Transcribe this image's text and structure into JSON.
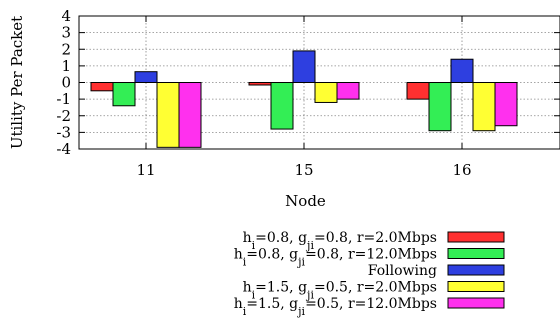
{
  "chart_data": {
    "type": "bar",
    "title": "",
    "xlabel": "Node",
    "ylabel": "Utility Per Packet",
    "ylim": [
      -4,
      4
    ],
    "yticks": [
      4,
      3,
      2,
      1,
      0,
      -1,
      -2,
      -3,
      -4
    ],
    "grid": true,
    "legend_position": "bottom-right, below plot",
    "categories": [
      "11",
      "15",
      "16"
    ],
    "series": [
      {
        "name_parts": {
          "pre": "h",
          "pre_sub": "i",
          "mid": "=0.8, g",
          "mid_sub": "ji",
          "post": "=0.8, r=2.0Mbps"
        },
        "color": "#ff3030",
        "values": [
          -0.5,
          -0.15,
          -1.0
        ]
      },
      {
        "name_parts": {
          "pre": "h",
          "pre_sub": "i",
          "mid": "=0.8, g",
          "mid_sub": "ji",
          "post": "=0.8, r=12.0Mbps"
        },
        "color": "#33ee55",
        "values": [
          -1.4,
          -2.8,
          -2.9
        ]
      },
      {
        "name": "Following",
        "color": "#2e3fe0",
        "values": [
          0.65,
          1.9,
          1.4
        ]
      },
      {
        "name_parts": {
          "pre": "h",
          "pre_sub": "i",
          "mid": "=1.5, g",
          "mid_sub": "ji",
          "post": "=0.5, r=2.0Mbps"
        },
        "color": "#ffff33",
        "values": [
          -3.9,
          -1.2,
          -2.9
        ]
      },
      {
        "name_parts": {
          "pre": "h",
          "pre_sub": "i",
          "mid": "=1.5, g",
          "mid_sub": "ji",
          "post": "=0.5, r=12.0Mbps"
        },
        "color": "#ff30ee",
        "values": [
          -3.9,
          -1.0,
          -2.6
        ]
      }
    ]
  }
}
